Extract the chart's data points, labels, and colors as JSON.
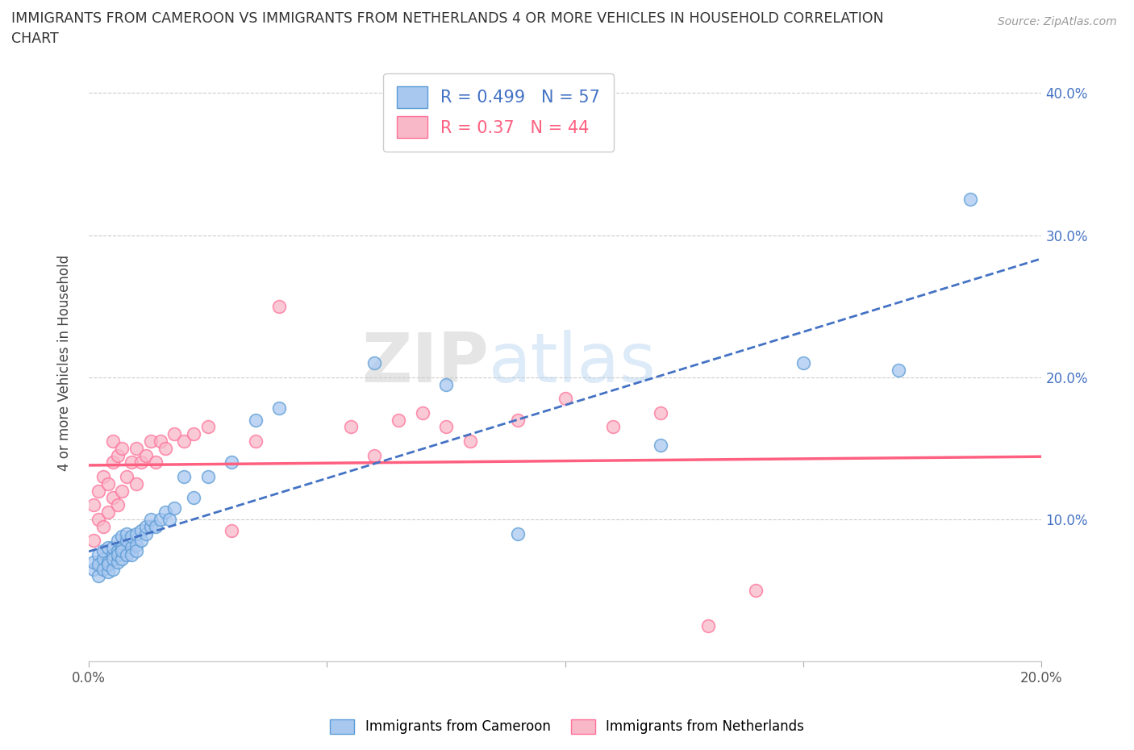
{
  "title_line1": "IMMIGRANTS FROM CAMEROON VS IMMIGRANTS FROM NETHERLANDS 4 OR MORE VEHICLES IN HOUSEHOLD CORRELATION",
  "title_line2": "CHART",
  "source": "Source: ZipAtlas.com",
  "ylabel": "4 or more Vehicles in Household",
  "xlim": [
    0.0,
    0.2
  ],
  "ylim": [
    0.0,
    0.42
  ],
  "x_ticks": [
    0.0,
    0.05,
    0.1,
    0.15,
    0.2
  ],
  "x_tick_labels": [
    "0.0%",
    "",
    "",
    "",
    "20.0%"
  ],
  "y_ticks": [
    0.0,
    0.1,
    0.2,
    0.3,
    0.4
  ],
  "y_tick_labels_right": [
    "",
    "10.0%",
    "20.0%",
    "30.0%",
    "40.0%"
  ],
  "blue_R": 0.499,
  "blue_N": 57,
  "pink_R": 0.37,
  "pink_N": 44,
  "blue_face_color": "#A8C8F0",
  "pink_face_color": "#F8B8C8",
  "blue_edge_color": "#5B9BD5",
  "pink_edge_color": "#FF7098",
  "blue_line_color": "#4472C4",
  "pink_line_color": "#FF6080",
  "legend_label_blue": "Immigrants from Cameroon",
  "legend_label_pink": "Immigrants from Netherlands",
  "watermark_zip": "ZIP",
  "watermark_atlas": "atlas",
  "blue_scatter_x": [
    0.001,
    0.001,
    0.002,
    0.002,
    0.002,
    0.003,
    0.003,
    0.003,
    0.004,
    0.004,
    0.004,
    0.004,
    0.005,
    0.005,
    0.005,
    0.005,
    0.006,
    0.006,
    0.006,
    0.006,
    0.007,
    0.007,
    0.007,
    0.007,
    0.008,
    0.008,
    0.008,
    0.009,
    0.009,
    0.009,
    0.01,
    0.01,
    0.01,
    0.011,
    0.011,
    0.012,
    0.012,
    0.013,
    0.013,
    0.014,
    0.015,
    0.016,
    0.017,
    0.018,
    0.02,
    0.022,
    0.025,
    0.03,
    0.035,
    0.04,
    0.06,
    0.075,
    0.09,
    0.12,
    0.15,
    0.17,
    0.185
  ],
  "blue_scatter_y": [
    0.065,
    0.07,
    0.06,
    0.075,
    0.068,
    0.072,
    0.065,
    0.078,
    0.07,
    0.063,
    0.08,
    0.068,
    0.075,
    0.065,
    0.08,
    0.072,
    0.078,
    0.07,
    0.085,
    0.075,
    0.08,
    0.072,
    0.088,
    0.078,
    0.085,
    0.075,
    0.09,
    0.08,
    0.088,
    0.075,
    0.082,
    0.09,
    0.078,
    0.092,
    0.085,
    0.09,
    0.095,
    0.095,
    0.1,
    0.095,
    0.1,
    0.105,
    0.1,
    0.108,
    0.13,
    0.115,
    0.13,
    0.14,
    0.17,
    0.178,
    0.21,
    0.195,
    0.09,
    0.152,
    0.21,
    0.205,
    0.325
  ],
  "pink_scatter_x": [
    0.001,
    0.001,
    0.002,
    0.002,
    0.003,
    0.003,
    0.004,
    0.004,
    0.005,
    0.005,
    0.005,
    0.006,
    0.006,
    0.007,
    0.007,
    0.008,
    0.009,
    0.01,
    0.01,
    0.011,
    0.012,
    0.013,
    0.014,
    0.015,
    0.016,
    0.018,
    0.02,
    0.022,
    0.025,
    0.03,
    0.035,
    0.04,
    0.055,
    0.06,
    0.065,
    0.07,
    0.075,
    0.08,
    0.09,
    0.1,
    0.11,
    0.12,
    0.13,
    0.14
  ],
  "pink_scatter_y": [
    0.085,
    0.11,
    0.1,
    0.12,
    0.095,
    0.13,
    0.105,
    0.125,
    0.115,
    0.14,
    0.155,
    0.11,
    0.145,
    0.12,
    0.15,
    0.13,
    0.14,
    0.125,
    0.15,
    0.14,
    0.145,
    0.155,
    0.14,
    0.155,
    0.15,
    0.16,
    0.155,
    0.16,
    0.165,
    0.092,
    0.155,
    0.25,
    0.165,
    0.145,
    0.17,
    0.175,
    0.165,
    0.155,
    0.17,
    0.185,
    0.165,
    0.175,
    0.025,
    0.05
  ]
}
